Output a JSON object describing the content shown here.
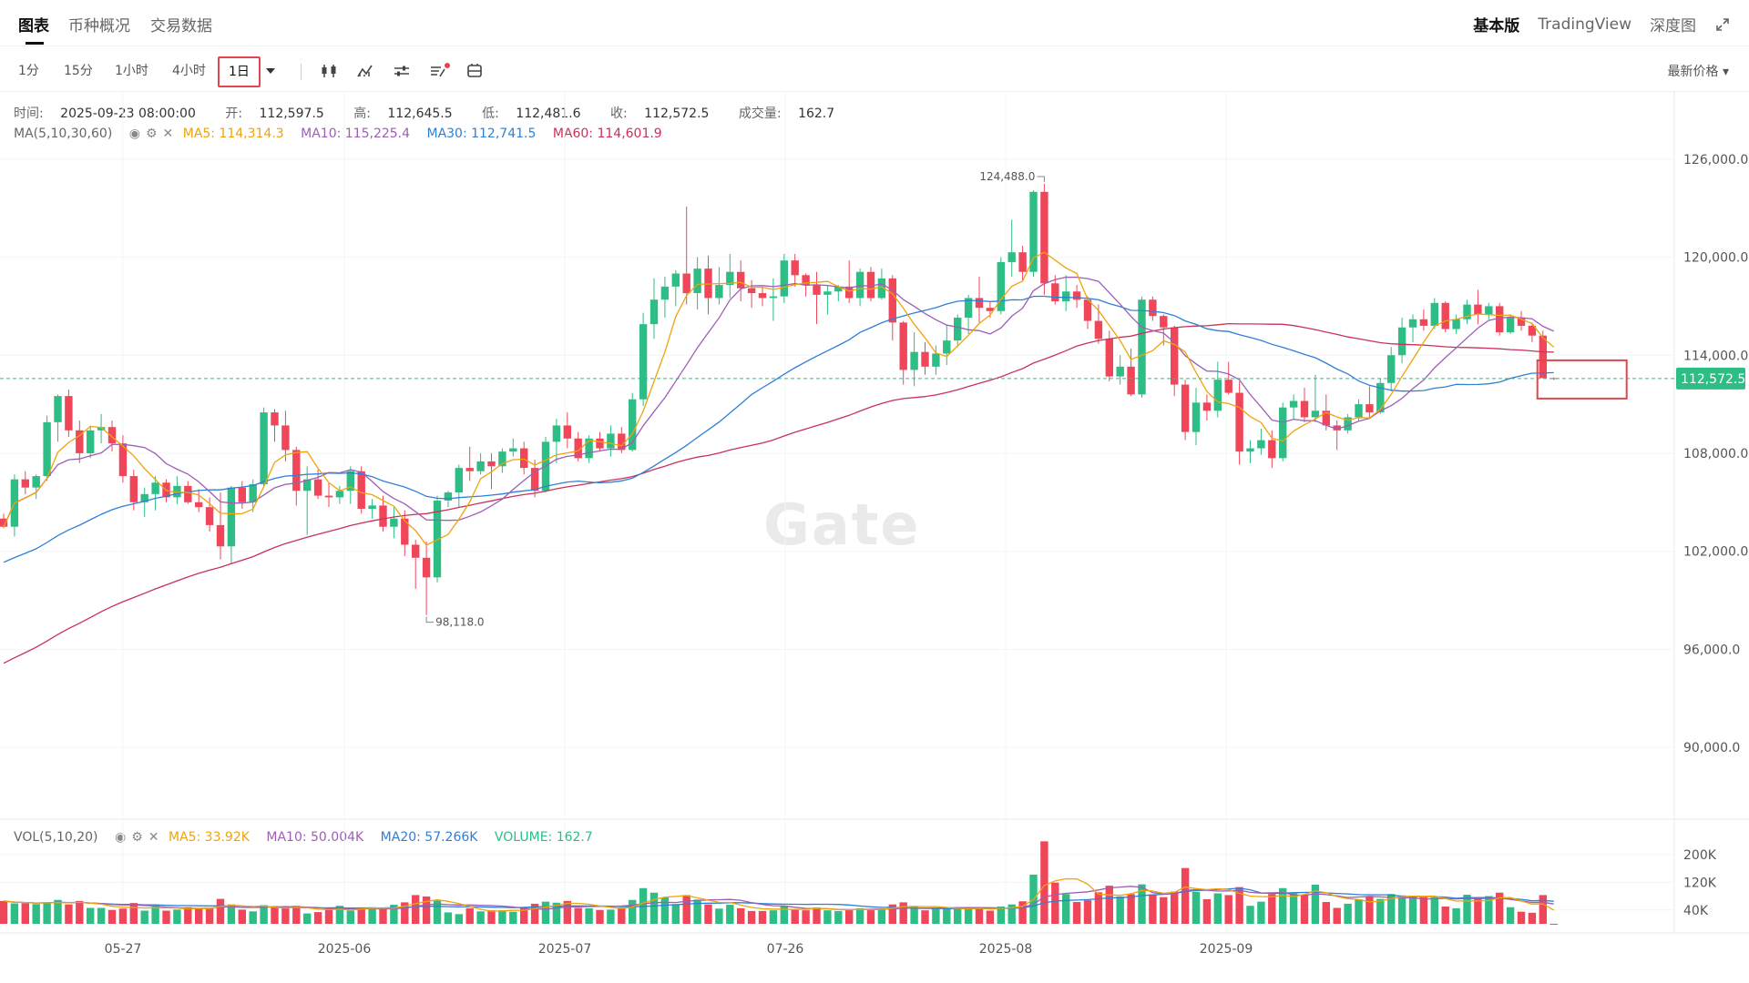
{
  "tabs": [
    {
      "label": "图表"
    },
    {
      "label": "币种概况"
    },
    {
      "label": "交易数据"
    }
  ],
  "right_tabs": [
    {
      "label": "基本版"
    },
    {
      "label": "TradingView"
    },
    {
      "label": "深度图"
    }
  ],
  "intervals": [
    {
      "label": "1分"
    },
    {
      "label": "15分"
    },
    {
      "label": "1小时"
    },
    {
      "label": "4小时"
    },
    {
      "label": "1日"
    }
  ],
  "toolbar_icons": [
    "candlestick-icon",
    "indicator-icon",
    "settings-sliders-icon",
    "drawing-list-icon",
    "compare-icon"
  ],
  "price_select": "最新价格",
  "watermark": "Gate",
  "ohlc": {
    "time_label": "时间:",
    "time": "2025-09-23 08:00:00",
    "open_label": "开:",
    "open": "112,597.5",
    "high_label": "高:",
    "high": "112,645.5",
    "low_label": "低:",
    "low": "112,481.6",
    "close_label": "收:",
    "close": "112,572.5",
    "vol_label": "成交量:",
    "vol": "162.7"
  },
  "ma_legend": {
    "name": "MA(5,10,30,60)",
    "ma5": "MA5: 114,314.3",
    "ma10": "MA10: 115,225.4",
    "ma30": "MA30: 112,741.5",
    "ma60": "MA60: 114,601.9"
  },
  "vol_legend": {
    "name": "VOL(5,10,20)",
    "ma5": "MA5: 33.92K",
    "ma10": "MA10: 50.004K",
    "ma20": "MA20: 57.266K",
    "volume": "VOLUME: 162.7"
  },
  "colors": {
    "up": "#2ebd85",
    "down": "#f0465a",
    "ma5": "#f0a30a",
    "ma10": "#9c5fb5",
    "ma30": "#2f7fd6",
    "ma60": "#c8325a",
    "current_price": "#2ebd85"
  },
  "chart_data": {
    "type": "candlestick",
    "price_axis": {
      "labels": [
        "126,000.0",
        "120,000.0",
        "114,000.0",
        "108,000.0",
        "102,000.0",
        "96,000.0",
        "90,000.0"
      ],
      "range": [
        85600,
        128500
      ]
    },
    "volume_axis": {
      "labels": [
        "200K",
        "120K",
        "40K"
      ],
      "range": [
        0,
        260000
      ]
    },
    "date_labels": [
      "05-27",
      "2025-06",
      "2025-07",
      "07-26",
      "2025-08",
      "2025-09"
    ],
    "current_price": "112,572.5",
    "high_annotation": "124,488.0",
    "low_annotation": "98,118.0",
    "candles": [
      [
        104000,
        104300,
        103400,
        103500,
        66000
      ],
      [
        103500,
        106700,
        102900,
        106400,
        59000
      ],
      [
        106400,
        106900,
        105500,
        105900,
        59000
      ],
      [
        105900,
        106700,
        105200,
        106600,
        57000
      ],
      [
        106600,
        110300,
        106300,
        109900,
        62000
      ],
      [
        109900,
        111600,
        108700,
        111500,
        69000
      ],
      [
        111500,
        111900,
        109000,
        109400,
        56000
      ],
      [
        109400,
        110000,
        107400,
        108000,
        66000
      ],
      [
        108000,
        109700,
        107700,
        109400,
        46000
      ],
      [
        109400,
        110400,
        108600,
        109600,
        46000
      ],
      [
        109600,
        110000,
        108100,
        108600,
        40000
      ],
      [
        108600,
        109100,
        106200,
        106600,
        44000
      ],
      [
        106600,
        107000,
        104500,
        105000,
        60000
      ],
      [
        105000,
        105900,
        104100,
        105500,
        38000
      ],
      [
        105500,
        106600,
        104500,
        106200,
        50000
      ],
      [
        106200,
        106400,
        105000,
        105300,
        38000
      ],
      [
        105300,
        106600,
        104900,
        106000,
        41000
      ],
      [
        106000,
        106300,
        104900,
        105000,
        48000
      ],
      [
        105000,
        105800,
        104400,
        104700,
        45000
      ],
      [
        104700,
        105300,
        103200,
        103600,
        45000
      ],
      [
        103600,
        105600,
        101500,
        102300,
        72000
      ],
      [
        102300,
        106000,
        101200,
        105900,
        56000
      ],
      [
        105900,
        106300,
        104600,
        105000,
        41000
      ],
      [
        105000,
        106400,
        104400,
        106100,
        36000
      ],
      [
        106100,
        110800,
        105900,
        110500,
        54000
      ],
      [
        110500,
        110700,
        108700,
        109700,
        51000
      ],
      [
        109700,
        110600,
        107500,
        108200,
        45000
      ],
      [
        108200,
        108400,
        104800,
        105700,
        52000
      ],
      [
        105700,
        107200,
        103000,
        106400,
        30000
      ],
      [
        106400,
        107000,
        105200,
        105400,
        34000
      ],
      [
        105400,
        106200,
        104700,
        105300,
        44000
      ],
      [
        105300,
        106000,
        104900,
        105700,
        52000
      ],
      [
        105700,
        107200,
        104900,
        106900,
        38000
      ],
      [
        106900,
        107200,
        104300,
        104600,
        45000
      ],
      [
        104600,
        105200,
        104000,
        104800,
        48000
      ],
      [
        104800,
        105400,
        103200,
        103500,
        43000
      ],
      [
        103500,
        104700,
        102800,
        104000,
        55000
      ],
      [
        104000,
        104500,
        101700,
        102400,
        62000
      ],
      [
        102400,
        102700,
        99700,
        101600,
        83000
      ],
      [
        101600,
        102600,
        98100,
        100400,
        79000
      ],
      [
        100400,
        105400,
        100100,
        105100,
        68000
      ],
      [
        105100,
        105700,
        104700,
        105600,
        33000
      ],
      [
        105600,
        107300,
        104700,
        107100,
        28000
      ],
      [
        107100,
        108400,
        106300,
        106900,
        45000
      ],
      [
        106900,
        108000,
        106700,
        107500,
        36000
      ],
      [
        107500,
        108000,
        105800,
        107200,
        39000
      ],
      [
        107200,
        108300,
        106800,
        108100,
        39000
      ],
      [
        108100,
        108900,
        107800,
        108300,
        35000
      ],
      [
        108300,
        108700,
        106700,
        107100,
        47000
      ],
      [
        107100,
        107600,
        105300,
        105700,
        58000
      ],
      [
        105700,
        109000,
        105600,
        108700,
        64000
      ],
      [
        108700,
        110100,
        107400,
        109700,
        61000
      ],
      [
        109700,
        110500,
        108300,
        108900,
        66000
      ],
      [
        108900,
        109300,
        107500,
        107700,
        46000
      ],
      [
        107700,
        109100,
        107400,
        108900,
        45000
      ],
      [
        108900,
        109300,
        108100,
        108300,
        40000
      ],
      [
        108300,
        109700,
        107800,
        109200,
        41000
      ],
      [
        109200,
        109600,
        108000,
        108200,
        47000
      ],
      [
        108200,
        111700,
        108100,
        111300,
        69000
      ],
      [
        111300,
        116600,
        110900,
        115900,
        103000
      ],
      [
        115900,
        118700,
        115000,
        117400,
        90000
      ],
      [
        117400,
        118800,
        116300,
        118200,
        76000
      ],
      [
        118200,
        119200,
        117000,
        119000,
        57000
      ],
      [
        119000,
        123100,
        117100,
        117800,
        83000
      ],
      [
        117800,
        120000,
        116800,
        119300,
        70000
      ],
      [
        119300,
        120100,
        116500,
        117500,
        56000
      ],
      [
        117500,
        119400,
        117100,
        118300,
        44000
      ],
      [
        118300,
        120200,
        117500,
        119100,
        55000
      ],
      [
        119100,
        119800,
        117300,
        118100,
        45000
      ],
      [
        118100,
        118600,
        116900,
        117800,
        37000
      ],
      [
        117800,
        118200,
        117000,
        117500,
        37000
      ],
      [
        117500,
        118700,
        116100,
        117600,
        39000
      ],
      [
        117600,
        120200,
        117200,
        119800,
        52000
      ],
      [
        119800,
        120200,
        118200,
        118900,
        43000
      ],
      [
        118900,
        119000,
        117600,
        118300,
        39000
      ],
      [
        118300,
        119100,
        115900,
        117700,
        47000
      ],
      [
        117700,
        118300,
        116500,
        117900,
        39000
      ],
      [
        117900,
        118300,
        117300,
        118200,
        37000
      ],
      [
        118200,
        119800,
        117200,
        117500,
        40000
      ],
      [
        117500,
        119300,
        117000,
        119100,
        45000
      ],
      [
        119100,
        119400,
        117300,
        117500,
        43000
      ],
      [
        117500,
        119300,
        117400,
        118700,
        42000
      ],
      [
        118700,
        118900,
        114900,
        116000,
        56000
      ],
      [
        116000,
        116100,
        112200,
        113100,
        62000
      ],
      [
        113100,
        115400,
        112100,
        114200,
        49000
      ],
      [
        114200,
        114800,
        112800,
        113300,
        39000
      ],
      [
        113300,
        114600,
        112800,
        114100,
        44000
      ],
      [
        114100,
        115800,
        113400,
        114900,
        43000
      ],
      [
        114900,
        116500,
        114500,
        116300,
        48000
      ],
      [
        116300,
        117700,
        115300,
        117500,
        43000
      ],
      [
        117500,
        118800,
        116000,
        116900,
        44000
      ],
      [
        116900,
        117300,
        116300,
        116700,
        38000
      ],
      [
        116700,
        120000,
        116500,
        119700,
        50000
      ],
      [
        119700,
        122300,
        118800,
        120300,
        56000
      ],
      [
        120300,
        120700,
        118500,
        119100,
        65000
      ],
      [
        119100,
        124100,
        118800,
        124000,
        142000
      ],
      [
        124000,
        124488,
        117700,
        118400,
        238000
      ],
      [
        118400,
        118900,
        117100,
        117300,
        119000
      ],
      [
        117300,
        118900,
        116700,
        117900,
        86000
      ],
      [
        117900,
        118300,
        116900,
        117400,
        63000
      ],
      [
        117400,
        117600,
        115600,
        116100,
        68000
      ],
      [
        116100,
        117100,
        114700,
        115000,
        91000
      ],
      [
        115000,
        115500,
        112400,
        112700,
        110000
      ],
      [
        112700,
        114000,
        112200,
        113300,
        79000
      ],
      [
        113300,
        114400,
        111500,
        111600,
        86000
      ],
      [
        111600,
        117600,
        111400,
        117400,
        114000
      ],
      [
        117400,
        117600,
        116100,
        116400,
        85000
      ],
      [
        116400,
        116500,
        114600,
        115700,
        77000
      ],
      [
        115700,
        115800,
        111500,
        112200,
        93000
      ],
      [
        112200,
        112500,
        108800,
        109300,
        161000
      ],
      [
        109300,
        112000,
        108500,
        111100,
        92000
      ],
      [
        111100,
        111600,
        110000,
        110600,
        71000
      ],
      [
        110600,
        113600,
        110200,
        112500,
        88000
      ],
      [
        112500,
        113600,
        111600,
        111700,
        83000
      ],
      [
        111700,
        112400,
        107300,
        108100,
        106000
      ],
      [
        108100,
        108800,
        107400,
        108300,
        52000
      ],
      [
        108300,
        109500,
        107900,
        108800,
        64000
      ],
      [
        108800,
        109400,
        107100,
        107700,
        86000
      ],
      [
        107700,
        111100,
        107500,
        110800,
        103000
      ],
      [
        110800,
        111600,
        110100,
        111200,
        88000
      ],
      [
        111200,
        112000,
        109900,
        110200,
        84000
      ],
      [
        110200,
        112800,
        109900,
        110600,
        113000
      ],
      [
        110600,
        111600,
        109400,
        109700,
        63000
      ],
      [
        109700,
        110000,
        108200,
        109400,
        46000
      ],
      [
        109400,
        110400,
        109200,
        110200,
        58000
      ],
      [
        110200,
        111300,
        110000,
        111000,
        71000
      ],
      [
        111000,
        112100,
        110200,
        110500,
        80000
      ],
      [
        110500,
        112600,
        110400,
        112300,
        72000
      ],
      [
        112300,
        114500,
        111800,
        114000,
        86000
      ],
      [
        114000,
        116300,
        113500,
        115700,
        82000
      ],
      [
        115700,
        116500,
        114800,
        116200,
        80000
      ],
      [
        116200,
        116800,
        115500,
        115800,
        77000
      ],
      [
        115800,
        117500,
        115600,
        117200,
        76000
      ],
      [
        117200,
        117300,
        115400,
        115600,
        50000
      ],
      [
        115600,
        116500,
        115300,
        116200,
        45000
      ],
      [
        116200,
        117400,
        115900,
        117100,
        84000
      ],
      [
        117100,
        118000,
        115900,
        116500,
        76000
      ],
      [
        116500,
        117200,
        116200,
        117000,
        80000
      ],
      [
        117000,
        117200,
        115200,
        115400,
        90000
      ],
      [
        115400,
        116500,
        115300,
        116300,
        48000
      ],
      [
        116300,
        116700,
        115500,
        115800,
        35000
      ],
      [
        115800,
        116000,
        114800,
        115200,
        32000
      ],
      [
        115200,
        115500,
        112600,
        112600,
        83000
      ],
      [
        112597.5,
        112645.5,
        112481.6,
        112572.5,
        163
      ]
    ]
  }
}
